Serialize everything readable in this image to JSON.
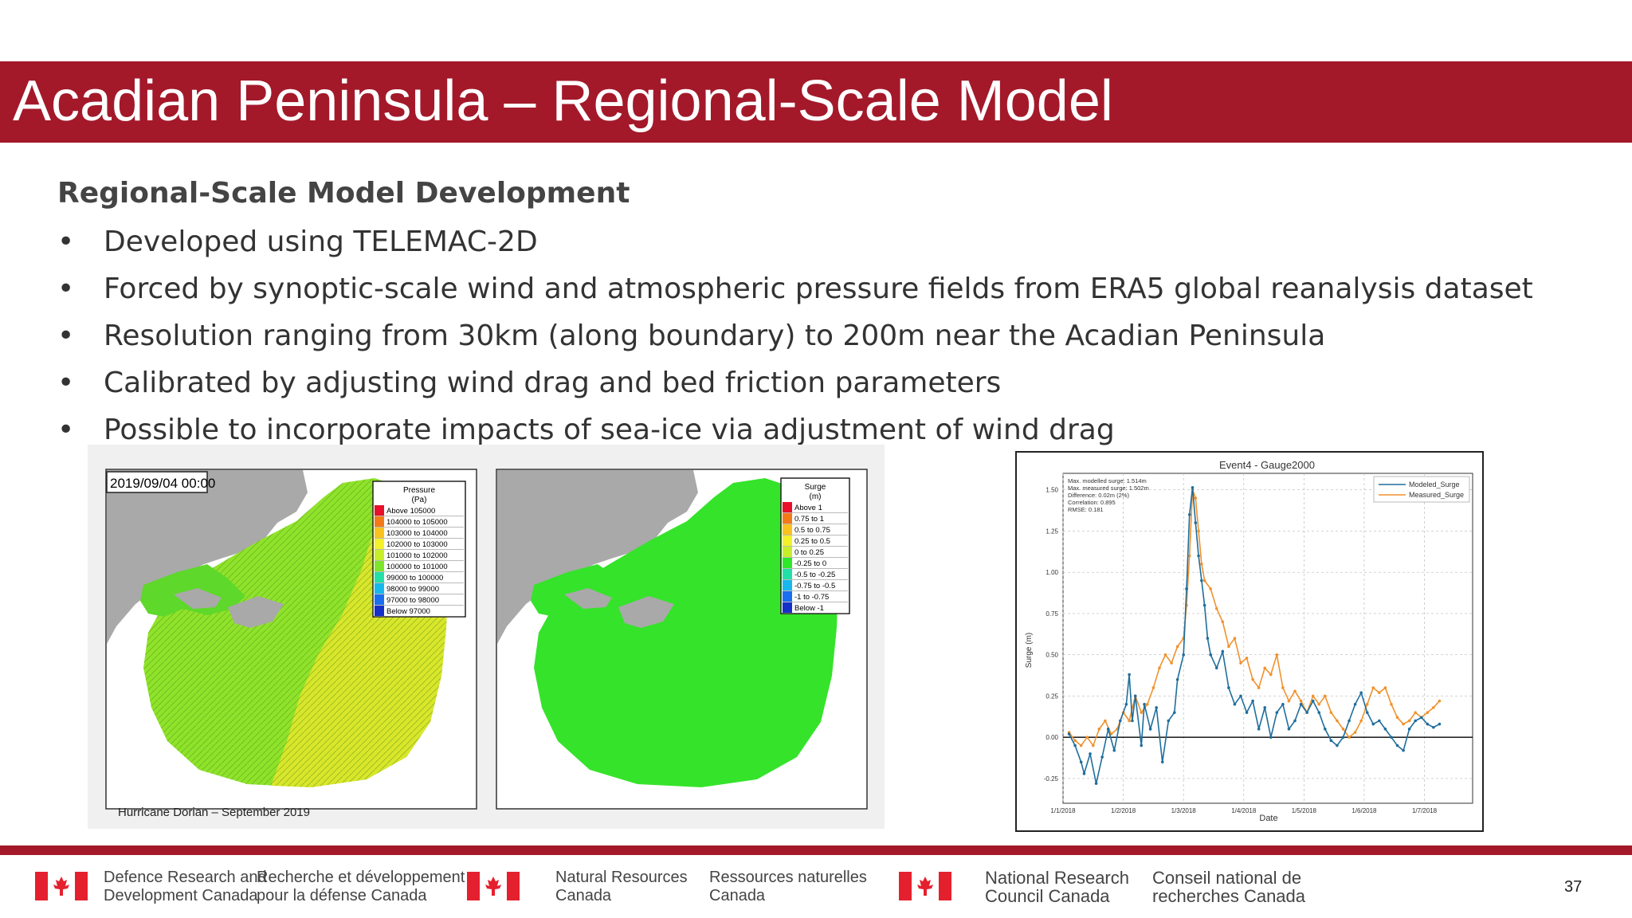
{
  "slide": {
    "title": "Acadian Peninsula – Regional-Scale Model",
    "subtitle": "Regional-Scale Model Development",
    "bullets": [
      "Developed using TELEMAC-2D",
      "Forced by synoptic-scale wind and atmospheric pressure fields from ERA5 global reanalysis dataset",
      "Resolution ranging from 30km (along boundary) to 200m near the Acadian Peninsula",
      "Calibrated by adjusting wind drag and bed friction parameters",
      "Possible to incorporate impacts of sea-ice via adjustment of wind drag"
    ],
    "bullet_symbol": "•",
    "page_number": "37"
  },
  "maps": {
    "timestamp": "2019/09/04 00:00",
    "caption": "Hurricane Dorian – September 2019",
    "pressure_legend": {
      "title": "Pressure",
      "unit": "(Pa)",
      "items": [
        "Above 105000",
        "104000 to 105000",
        "103000 to 104000",
        "102000 to 103000",
        "101000 to 102000",
        "100000 to 101000",
        "99000 to 100000",
        "98000 to 99000",
        "97000 to 98000",
        "Below 97000"
      ],
      "colors": [
        "#e8102a",
        "#f47a18",
        "#f9c21c",
        "#f4f02a",
        "#c8ee2a",
        "#7ee62a",
        "#22e0a8",
        "#18b8ee",
        "#1a6ef0",
        "#1430c8"
      ]
    },
    "surge_legend": {
      "title": "Surge",
      "unit": "(m)",
      "items": [
        "Above 1",
        "0.75 to 1",
        "0.5 to 0.75",
        "0.25 to 0.5",
        "0 to 0.25",
        "-0.25 to 0",
        "-0.5 to -0.25",
        "-0.75 to -0.5",
        "-1 to -0.75",
        "Below -1"
      ],
      "colors": [
        "#e8102a",
        "#f47a18",
        "#f9c21c",
        "#f4f02a",
        "#c8ee2a",
        "#2ee82a",
        "#22e0a8",
        "#18b8ee",
        "#1a6ef0",
        "#1430c8"
      ]
    },
    "land_color": "#a9a9a9",
    "sea_green": "#35e32a"
  },
  "chart_data": {
    "type": "line",
    "title": "Event4 - Gauge2000",
    "xlabel": "Date",
    "ylabel": "Surge (m)",
    "ylim": [
      -0.4,
      1.6
    ],
    "xlim": [
      0,
      6.8
    ],
    "x_tick_labels": [
      "1/1/2018",
      "1/2/2018",
      "1/3/2018",
      "1/4/2018",
      "1/5/2018",
      "1/6/2018",
      "1/7/2018"
    ],
    "y_ticks": [
      -0.25,
      0.0,
      0.25,
      0.5,
      0.75,
      1.0,
      1.25,
      1.5
    ],
    "y_tick_labels": [
      "-0.25",
      "0.00",
      "0.25",
      "0.50",
      "0.75",
      "1.00",
      "1.25",
      "1.50"
    ],
    "stats": [
      "Max. modelled surge: 1.514m",
      "Max. measured surge: 1.502m",
      "Difference: 0.02m (2%)",
      "Correlation: 0.895",
      "RMSE: 0.181"
    ],
    "grid": true,
    "legend_position": "top-right",
    "series": [
      {
        "name": "Modeled_Surge",
        "color": "#1f6e9c",
        "x": [
          0.1,
          0.2,
          0.3,
          0.35,
          0.45,
          0.55,
          0.65,
          0.75,
          0.85,
          0.95,
          1.05,
          1.1,
          1.15,
          1.2,
          1.3,
          1.35,
          1.45,
          1.55,
          1.65,
          1.75,
          1.85,
          1.9,
          2.0,
          2.05,
          2.1,
          2.15,
          2.2,
          2.25,
          2.3,
          2.35,
          2.4,
          2.45,
          2.55,
          2.65,
          2.75,
          2.85,
          2.95,
          3.05,
          3.15,
          3.25,
          3.35,
          3.45,
          3.55,
          3.65,
          3.75,
          3.85,
          3.95,
          4.05,
          4.15,
          4.25,
          4.35,
          4.45,
          4.55,
          4.65,
          4.75,
          4.85,
          4.95,
          5.05,
          5.15,
          5.25,
          5.35,
          5.45,
          5.55,
          5.65,
          5.75,
          5.85,
          5.95,
          6.05,
          6.15,
          6.25
        ],
        "values": [
          0.02,
          -0.05,
          -0.15,
          -0.22,
          -0.1,
          -0.28,
          -0.12,
          0.05,
          -0.08,
          0.1,
          0.2,
          0.38,
          0.1,
          0.25,
          -0.05,
          0.2,
          0.05,
          0.18,
          -0.15,
          0.1,
          0.15,
          0.35,
          0.5,
          0.9,
          1.35,
          1.514,
          1.3,
          1.1,
          0.95,
          0.8,
          0.6,
          0.5,
          0.42,
          0.52,
          0.3,
          0.2,
          0.25,
          0.15,
          0.22,
          0.05,
          0.18,
          0.0,
          0.15,
          0.2,
          0.05,
          0.1,
          0.2,
          0.15,
          0.22,
          0.15,
          0.05,
          -0.02,
          -0.05,
          0.0,
          0.1,
          0.2,
          0.27,
          0.15,
          0.08,
          0.1,
          0.05,
          0.0,
          -0.05,
          -0.08,
          0.05,
          0.1,
          0.12,
          0.08,
          0.06,
          0.08
        ]
      },
      {
        "name": "Measured_Surge",
        "color": "#f0922d",
        "x": [
          0.1,
          0.2,
          0.3,
          0.4,
          0.5,
          0.6,
          0.7,
          0.8,
          0.9,
          1.0,
          1.1,
          1.2,
          1.3,
          1.4,
          1.5,
          1.6,
          1.7,
          1.8,
          1.9,
          2.0,
          2.05,
          2.1,
          2.15,
          2.2,
          2.25,
          2.3,
          2.35,
          2.45,
          2.55,
          2.65,
          2.75,
          2.85,
          2.95,
          3.05,
          3.15,
          3.25,
          3.35,
          3.45,
          3.55,
          3.65,
          3.75,
          3.85,
          3.95,
          4.05,
          4.15,
          4.25,
          4.35,
          4.45,
          4.55,
          4.65,
          4.75,
          4.85,
          4.95,
          5.05,
          5.15,
          5.25,
          5.35,
          5.45,
          5.55,
          5.65,
          5.75,
          5.85,
          5.95,
          6.05,
          6.15,
          6.25
        ],
        "values": [
          0.03,
          -0.02,
          -0.05,
          0.0,
          -0.05,
          0.05,
          0.1,
          0.02,
          0.05,
          0.15,
          0.1,
          0.25,
          0.15,
          0.2,
          0.3,
          0.42,
          0.5,
          0.45,
          0.55,
          0.6,
          0.8,
          1.1,
          1.502,
          1.45,
          1.25,
          1.05,
          0.95,
          0.9,
          0.78,
          0.7,
          0.55,
          0.6,
          0.45,
          0.48,
          0.35,
          0.3,
          0.42,
          0.38,
          0.5,
          0.3,
          0.22,
          0.28,
          0.22,
          0.15,
          0.25,
          0.2,
          0.25,
          0.15,
          0.1,
          0.05,
          0.0,
          0.03,
          0.1,
          0.2,
          0.3,
          0.27,
          0.3,
          0.2,
          0.12,
          0.08,
          0.1,
          0.15,
          0.12,
          0.15,
          0.18,
          0.22
        ]
      }
    ]
  },
  "footer": {
    "logos": [
      {
        "en": [
          "Defence Research and",
          "Development Canada"
        ],
        "fr": [
          "Recherche et développement",
          "pour la défense Canada"
        ]
      },
      {
        "en": [
          "Natural Resources",
          "Canada"
        ],
        "fr": [
          "Ressources naturelles",
          "Canada"
        ]
      },
      {
        "en": [
          "National Research",
          "Council Canada"
        ],
        "fr": [
          "Conseil national de",
          "recherches Canada"
        ]
      }
    ],
    "flag_red": "#e5202e"
  }
}
